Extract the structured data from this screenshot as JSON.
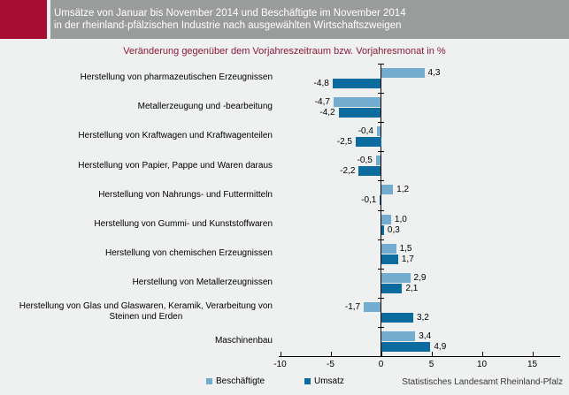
{
  "header": {
    "title_line1": "Umsätze von Januar bis November 2014 und Beschäftigte im November 2014",
    "title_line2": "in der rheinland-pfälzischen Industrie nach ausgewählten Wirtschaftszweigen"
  },
  "subtitle": "Veränderung gegenüber dem Vorjahreszeitraum bzw. Vorjahresmonat in %",
  "source": "Statistisches Landesamt Rheinland-Pfalz",
  "colors": {
    "accent_red": "#A50D33",
    "header_gray": "#9A9B9B",
    "subtitle_red": "#8C1A38",
    "light_blue": "#72ACCE",
    "dark_blue": "#0C6CA0",
    "axis_black": "#000000",
    "page_bg": "#EFF0F0"
  },
  "chart_data": {
    "type": "bar",
    "orientation": "horizontal",
    "title": "Veränderung gegenüber dem Vorjahreszeitraum bzw. Vorjahresmonat in %",
    "unit": "%",
    "categories": [
      "Herstellung von pharmazeutischen Erzeugnissen",
      "Metallerzeugung und -bearbeitung",
      "Herstellung von Kraftwagen und Kraftwagenteilen",
      "Herstellung von Papier, Pappe und Waren daraus",
      "Herstellung von Nahrungs- und Futtermitteln",
      "Herstellung von Gummi- und Kunststoffwaren",
      "Herstellung von chemischen Erzeugnissen",
      "Herstellung von Metallerzeugnissen",
      "Herstellung von Glas und Glaswaren, Keramik, Verarbeitung von\nSteinen und Erden",
      "Maschinenbau"
    ],
    "series": [
      {
        "name": "Beschäftigte",
        "key": "beschaeftigte",
        "color_key": "light_blue",
        "values": [
          4.3,
          -4.7,
          -0.4,
          -0.5,
          1.2,
          1.0,
          1.5,
          2.9,
          -1.7,
          3.4
        ]
      },
      {
        "name": "Umsatz",
        "key": "umsatz",
        "color_key": "dark_blue",
        "values": [
          -4.8,
          -4.2,
          -2.5,
          -2.2,
          -0.1,
          0.3,
          1.7,
          2.1,
          3.2,
          4.9
        ]
      }
    ],
    "x_ticks": [
      -10,
      -5,
      0,
      5,
      10,
      15
    ],
    "xlim": [
      -10.2,
      17.8
    ],
    "grid": false,
    "legend": [
      "Beschäftigte",
      "Umsatz"
    ],
    "legend_position": "bottom",
    "value_labels_shown": true,
    "decimal_separator": ","
  }
}
